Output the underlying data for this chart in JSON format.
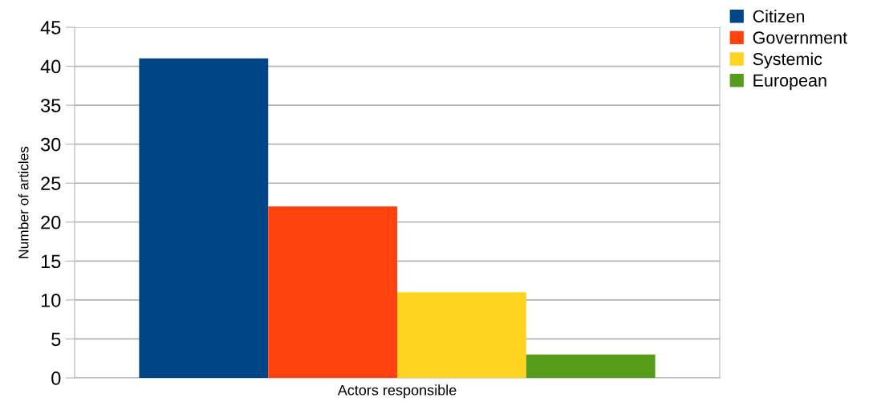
{
  "chart_data": {
    "type": "bar",
    "ylabel": "Number of articles",
    "categories": [
      "Actors responsible"
    ],
    "series": [
      {
        "name": "Citizen",
        "color": "#004586",
        "values": [
          41
        ]
      },
      {
        "name": "Government",
        "color": "#ff420e",
        "values": [
          22
        ]
      },
      {
        "name": "Systemic",
        "color": "#ffd320",
        "values": [
          11
        ]
      },
      {
        "name": "European",
        "color": "#579d1c",
        "values": [
          3
        ]
      }
    ],
    "ylim": [
      0,
      45
    ],
    "yticks": [
      0,
      5,
      10,
      15,
      20,
      25,
      30,
      35,
      40,
      45
    ],
    "grid": "y",
    "legend": "top right"
  }
}
